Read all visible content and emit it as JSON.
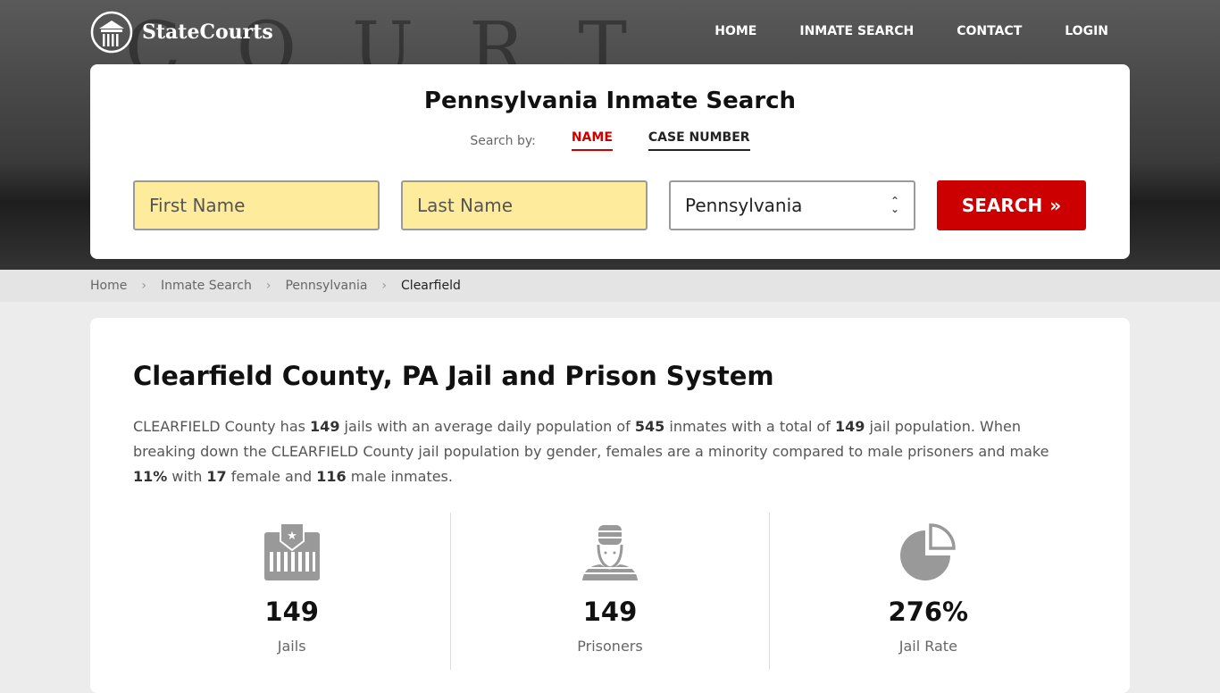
{
  "brand": "StateCourts",
  "hero_text": "COURT HOUSE",
  "nav": [
    "HOME",
    "INMATE SEARCH",
    "CONTACT",
    "LOGIN"
  ],
  "search": {
    "title": "Pennsylvania Inmate Search",
    "search_by": "Search by:",
    "tabs": [
      "NAME",
      "CASE NUMBER"
    ],
    "first_placeholder": "First Name",
    "last_placeholder": "Last Name",
    "state": "Pennsylvania",
    "button": "SEARCH"
  },
  "breadcrumb": [
    "Home",
    "Inmate Search",
    "Pennsylvania",
    "Clearfield"
  ],
  "main": {
    "title": "Clearfield County, PA Jail and Prison System",
    "p": [
      "CLEARFIELD County has ",
      "149",
      " jails with an average daily population of ",
      "545",
      " inmates with a total of ",
      "149",
      " jail population. When breaking down the CLEARFIELD County jail population by gender, females are a minority compared to male prisoners and make ",
      "11%",
      " with ",
      "17",
      " female and ",
      "116",
      " male inmates."
    ],
    "stats": [
      {
        "value": "149",
        "label": "Jails",
        "icon": "jail-icon"
      },
      {
        "value": "149",
        "label": "Prisoners",
        "icon": "prisoner-icon"
      },
      {
        "value": "276%",
        "label": "Jail Rate",
        "icon": "pie-chart-icon"
      }
    ]
  },
  "colors": {
    "accent": "#cc0000",
    "input_bg": "#feeb9c"
  }
}
